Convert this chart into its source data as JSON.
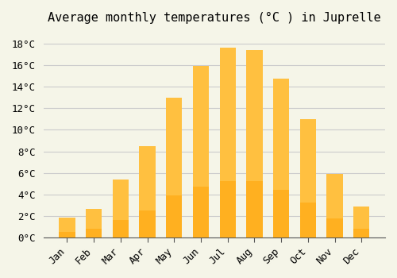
{
  "title": "Average monthly temperatures (°C ) in Juprelle",
  "months": [
    "Jan",
    "Feb",
    "Mar",
    "Apr",
    "May",
    "Jun",
    "Jul",
    "Aug",
    "Sep",
    "Oct",
    "Nov",
    "Dec"
  ],
  "values": [
    1.9,
    2.7,
    5.4,
    8.5,
    13.0,
    15.9,
    17.6,
    17.4,
    14.7,
    11.0,
    5.9,
    2.9
  ],
  "bar_color_top": "#FFC040",
  "bar_color_bottom": "#FFB020",
  "background_color": "#F5F5E8",
  "grid_color": "#CCCCCC",
  "ylim": [
    0,
    19
  ],
  "yticks": [
    0,
    2,
    4,
    6,
    8,
    10,
    12,
    14,
    16,
    18
  ],
  "title_fontsize": 11,
  "tick_fontsize": 9,
  "font_family": "monospace"
}
